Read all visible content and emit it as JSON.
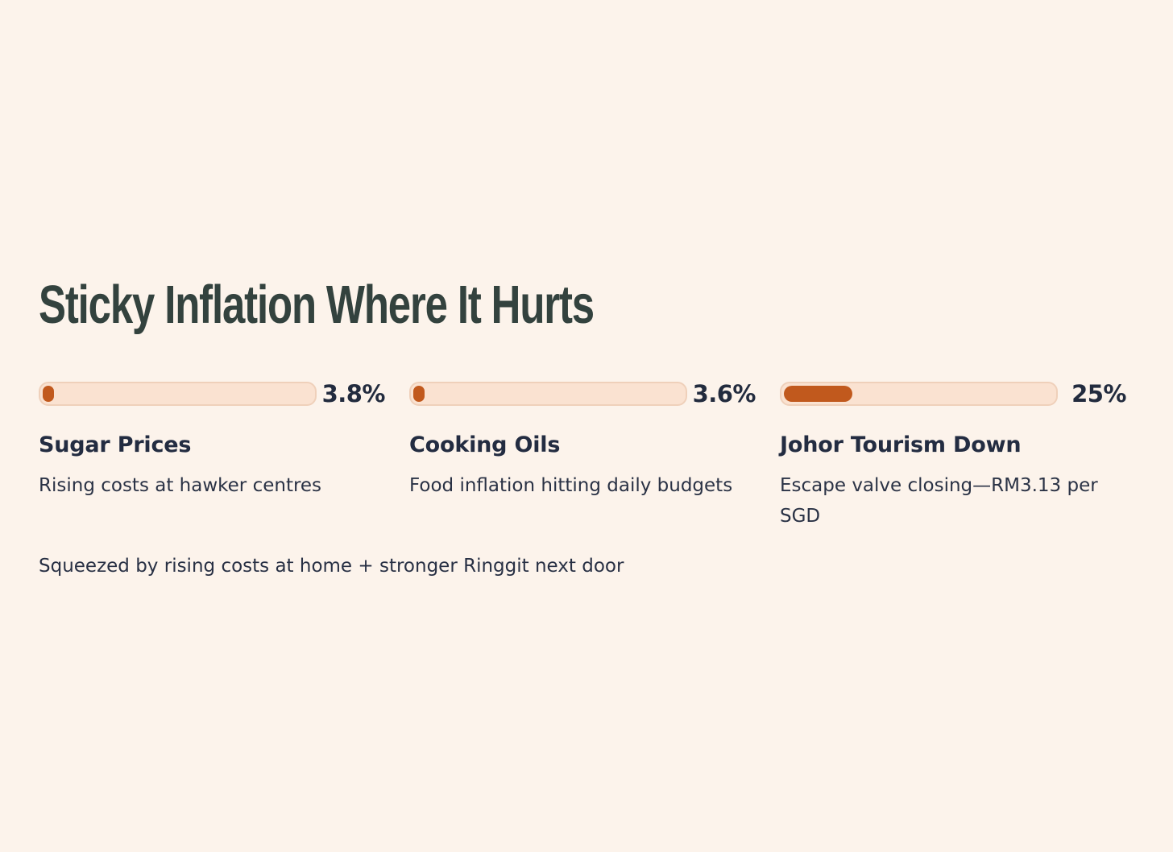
{
  "page": {
    "title": "Sticky Inflation Where It Hurts",
    "footer": "Squeezed by rising costs at home + stronger Ringgit next door"
  },
  "colors": {
    "background": "#FCF3EB",
    "title_text": "#33423E",
    "body_text": "#232C41",
    "bar_fill": "#C1591D",
    "bar_track": "#FAE2D1",
    "bar_track_border": "#EFD0BA"
  },
  "cards": [
    {
      "title": "Sugar Prices",
      "subtitle": "Rising costs at hawker centres",
      "value_label": "3.8%",
      "fill_width": "4%"
    },
    {
      "title": "Cooking Oils",
      "subtitle": "Food inflation hitting daily budgets",
      "value_label": "3.6%",
      "fill_width": "4%"
    },
    {
      "title": "Johor Tourism Down",
      "subtitle": "Escape valve closing—RM3.13 per SGD",
      "value_label": "25%",
      "fill_width": "25%"
    }
  ],
  "chart_data": {
    "type": "bar",
    "title": "Sticky Inflation Where It Hurts",
    "categories": [
      "Sugar Prices",
      "Cooking Oils",
      "Johor Tourism Down"
    ],
    "values": [
      3.8,
      3.6,
      25
    ],
    "value_labels": [
      "3.8%",
      "3.6%",
      "25%"
    ],
    "unit": "%",
    "bar_scale_max": 100,
    "annotations": [
      "Rising costs at hawker centres",
      "Food inflation hitting daily budgets",
      "Escape valve closing—RM3.13 per SGD",
      "Squeezed by rising costs at home + stronger Ringgit next door"
    ],
    "orientation": "horizontal",
    "grid": false,
    "legend": false
  }
}
